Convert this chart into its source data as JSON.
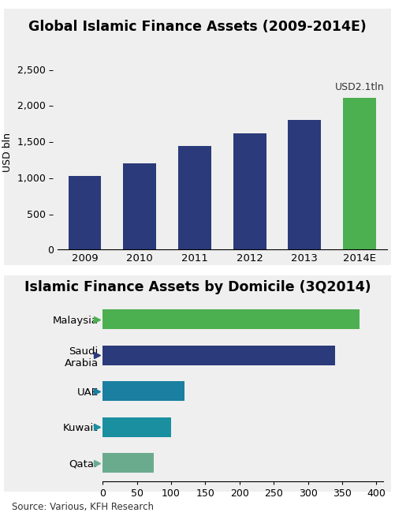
{
  "top_title": "Global Islamic Finance Assets (2009-2014E)",
  "bottom_title": "Islamic Finance Assets by Domicile (3Q2014)",
  "source_text": "Source: Various, KFH Research",
  "bar_years": [
    "2009",
    "2010",
    "2011",
    "2012",
    "2013",
    "2014E"
  ],
  "bar_values": [
    1020,
    1190,
    1430,
    1610,
    1800,
    2100
  ],
  "bar_colors": [
    "#2b3a7a",
    "#2b3a7a",
    "#2b3a7a",
    "#2b3a7a",
    "#2b3a7a",
    "#4caf50"
  ],
  "bar_annotation": "USD2.1tln",
  "bar_ylabel": "USD bln",
  "bar_ylim": [
    0,
    2700
  ],
  "bar_yticks": [
    0,
    500,
    1000,
    1500,
    2000,
    2500
  ],
  "bar_ytick_labels": [
    "0",
    "500 –",
    "1,000 –",
    "1,500 –",
    "2,000 –",
    "2,500 –"
  ],
  "hbar_categories": [
    "Malaysia",
    "Saudi\nArabia",
    "UAE",
    "Kuwait",
    "Qatar"
  ],
  "hbar_values": [
    375,
    340,
    120,
    100,
    75
  ],
  "hbar_colors": [
    "#4caf50",
    "#2b3a7a",
    "#1a7fa0",
    "#1a8fa0",
    "#6aab8e"
  ],
  "hbar_marker_colors": [
    "#4caf50",
    "#2b3a7a",
    "#1a7fa0",
    "#1a8fa0",
    "#6aab8e"
  ],
  "hbar_xlim": [
    0,
    410
  ],
  "hbar_xticks": [
    0,
    50,
    100,
    150,
    200,
    250,
    300,
    350,
    400
  ],
  "bg_color": "#efefef",
  "white_color": "#ffffff",
  "text_color": "#333333"
}
